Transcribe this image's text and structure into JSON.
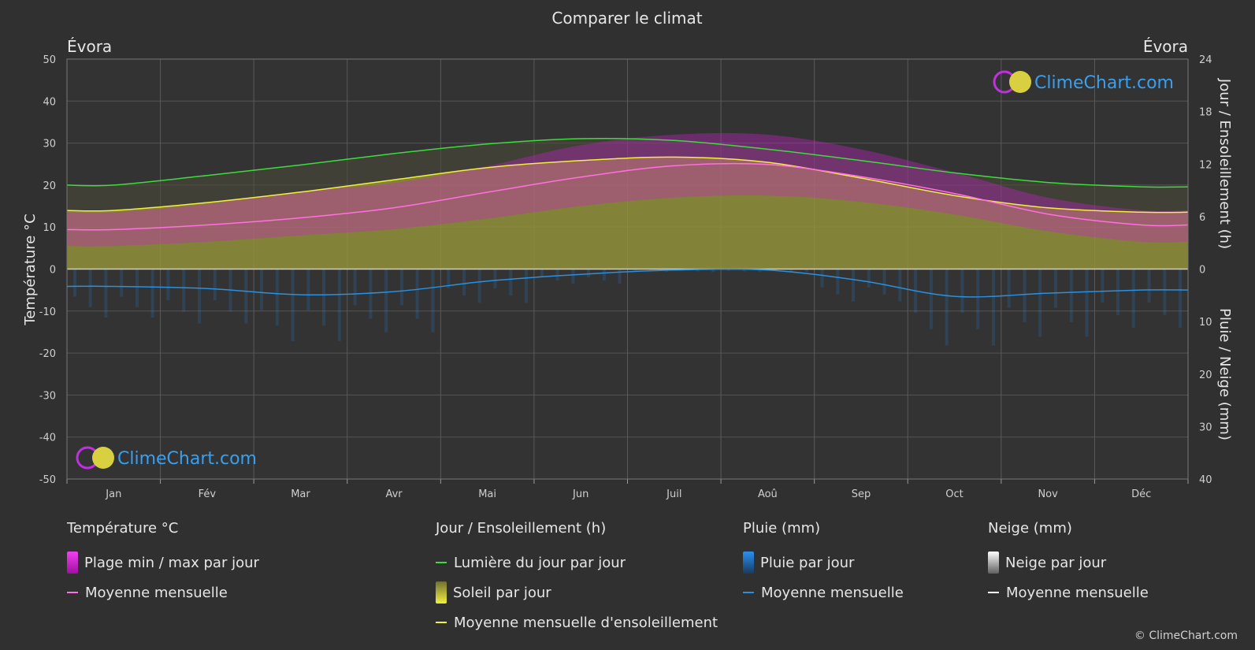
{
  "title": "Comparer le climat",
  "location_left": "Évora",
  "location_right": "Évora",
  "axis_left_label": "Température °C",
  "axis_right_top_label": "Jour / Ensoleillement (h)",
  "axis_right_bottom_label": "Pluie / Neige (mm)",
  "watermark": "ClimeChart.com",
  "copyright": "© ClimeChart.com",
  "legend": {
    "temp": {
      "title": "Température °C",
      "range": "Plage min / max par jour",
      "mean": "Moyenne mensuelle"
    },
    "sun": {
      "title": "Jour / Ensoleillement (h)",
      "daylight": "Lumière du jour par jour",
      "sunshine": "Soleil par jour",
      "mean": "Moyenne mensuelle d'ensoleillement"
    },
    "rain": {
      "title": "Pluie (mm)",
      "daily": "Pluie par jour",
      "mean": "Moyenne mensuelle"
    },
    "snow": {
      "title": "Neige (mm)",
      "daily": "Neige par jour",
      "mean": "Moyenne mensuelle"
    }
  },
  "colors": {
    "temp_range": "#d020d0",
    "temp_mean": "#ff70e0",
    "daylight": "#3ddc3d",
    "sunshine_fill": "#b8b83a",
    "sunshine_mean": "#f0f040",
    "rain": "#2a7fd0",
    "rain_mean": "#2a90e0",
    "snow_mean": "#ffffff"
  },
  "chart_data": {
    "type": "line",
    "categories": [
      "Jan",
      "Fév",
      "Mar",
      "Avr",
      "Mai",
      "Jun",
      "Juil",
      "Aoû",
      "Sep",
      "Oct",
      "Nov",
      "Déc"
    ],
    "temp_axis": {
      "min": -50,
      "max": 50,
      "ticks": [
        50,
        40,
        30,
        20,
        10,
        0,
        -10,
        -20,
        -30,
        -40,
        -50
      ]
    },
    "sun_axis": {
      "min": 0,
      "max": 24,
      "ticks": [
        24,
        18,
        12,
        6,
        0
      ]
    },
    "rain_axis": {
      "min": 0,
      "max": 40,
      "ticks": [
        0,
        10,
        20,
        30,
        40
      ]
    },
    "series": [
      {
        "name": "Lumière du jour par jour",
        "axis": "sun",
        "values": [
          9.6,
          10.7,
          11.9,
          13.2,
          14.3,
          14.9,
          14.7,
          13.7,
          12.4,
          11.0,
          9.9,
          9.4
        ]
      },
      {
        "name": "Moyenne mensuelle d'ensoleillement",
        "axis": "sun",
        "values": [
          6.7,
          7.6,
          8.8,
          10.2,
          11.6,
          12.4,
          12.8,
          12.2,
          10.4,
          8.4,
          7.0,
          6.5
        ]
      },
      {
        "name": "Moyenne mensuelle",
        "axis": "temp",
        "values": [
          9.4,
          10.5,
          12.2,
          14.6,
          18.3,
          21.9,
          24.6,
          24.9,
          22.0,
          18.0,
          13.1,
          10.5
        ]
      },
      {
        "name": "Plage min / max par jour (max)",
        "axis": "temp",
        "values": [
          13.5,
          15.5,
          18.5,
          20.5,
          24.5,
          29.5,
          32.0,
          32.0,
          28.5,
          23.0,
          17.0,
          14.0
        ]
      },
      {
        "name": "Plage min / max par jour (min)",
        "axis": "temp",
        "values": [
          5.5,
          6.5,
          8.0,
          9.5,
          12.0,
          15.0,
          17.0,
          17.5,
          16.0,
          13.0,
          9.0,
          6.5
        ]
      },
      {
        "name": "Pluie mensuelle moyenne",
        "axis": "rain",
        "values": [
          3.3,
          3.7,
          4.9,
          4.3,
          2.3,
          1.0,
          0.2,
          0.2,
          2.2,
          5.2,
          4.6,
          4.0
        ]
      }
    ]
  }
}
